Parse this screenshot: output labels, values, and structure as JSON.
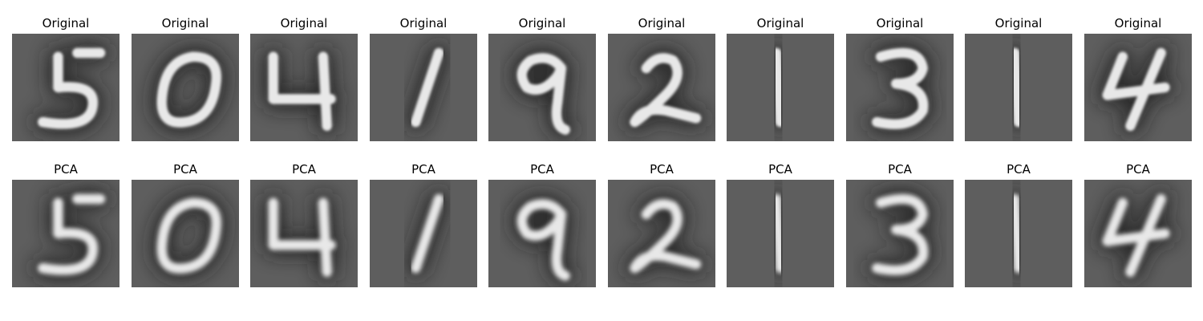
{
  "figure": {
    "rows": [
      {
        "label": "Original",
        "digits": [
          "5",
          "0",
          "4",
          "1",
          "9",
          "2",
          "1",
          "3",
          "1",
          "4"
        ]
      },
      {
        "label": "PCA",
        "digits": [
          "5",
          "0",
          "4",
          "1",
          "9",
          "2",
          "1",
          "3",
          "1",
          "4"
        ]
      }
    ],
    "colors": {
      "background": "#5e5e5e",
      "shadow": "#1e1e1e",
      "stroke": "#e8e8e8"
    }
  }
}
